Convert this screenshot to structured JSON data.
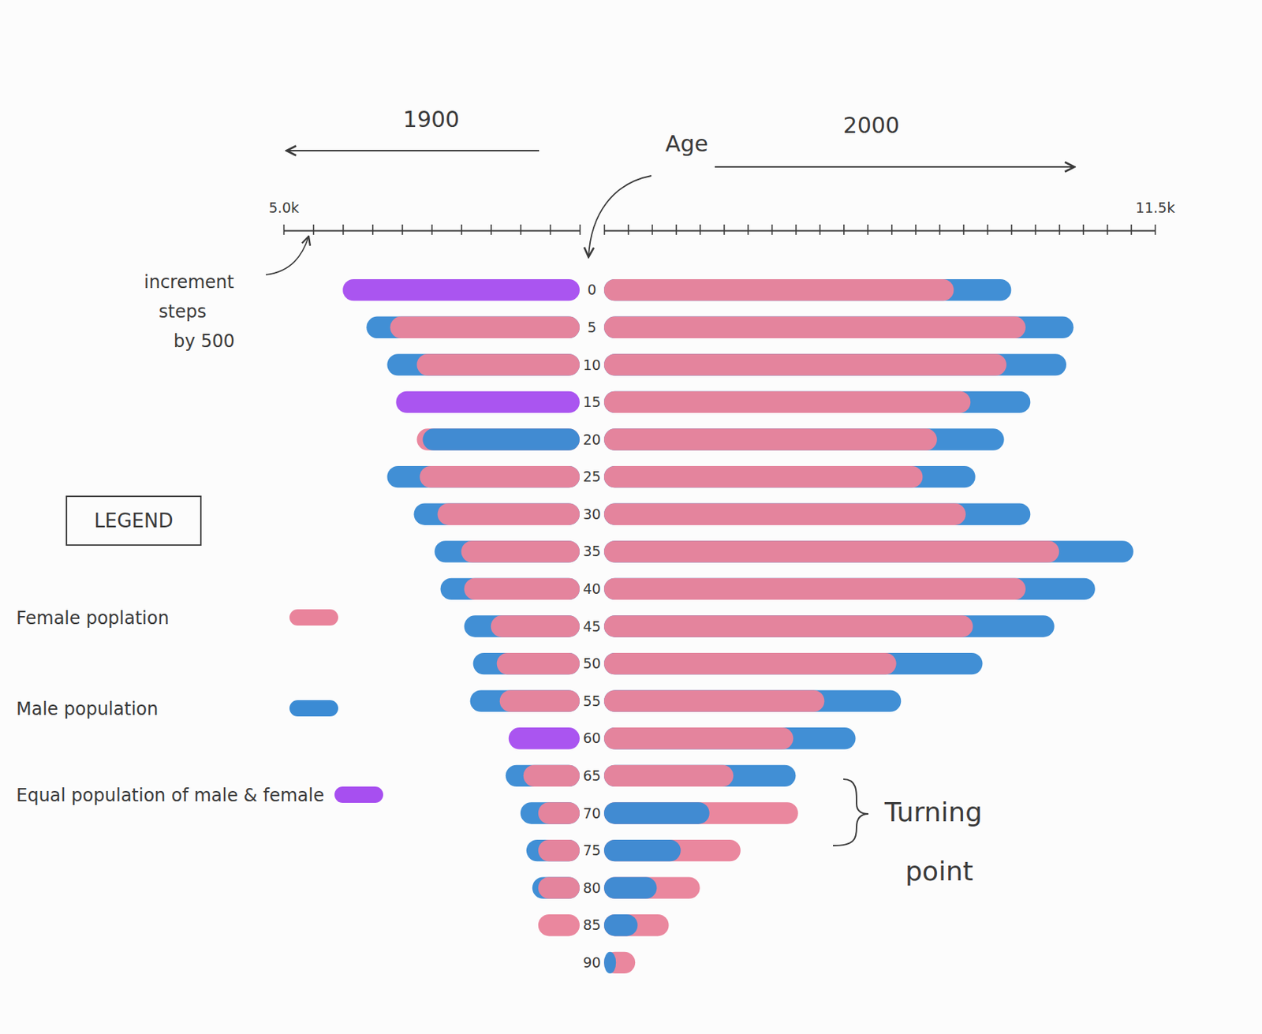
{
  "chart_data": {
    "type": "bar",
    "orientation": "horizontal",
    "y_label": "Age",
    "categories": [
      0,
      5,
      10,
      15,
      20,
      25,
      30,
      35,
      40,
      45,
      50,
      55,
      60,
      65,
      70,
      75,
      80,
      85,
      90
    ],
    "series": [
      {
        "name": "Female poplation",
        "color": "#e9839b"
      },
      {
        "name": "Male population",
        "color": "#3b8bd4"
      }
    ],
    "equal": {
      "name": "Equal population of male & female",
      "color": "#a74ff0"
    },
    "legend": "left",
    "legend_title": "LEGEND",
    "annotations": [
      {
        "lines": [
          "increment",
          "steps",
          "by 500"
        ]
      },
      {
        "lines": [
          "Turning",
          "point"
        ]
      }
    ],
    "panels": [
      {
        "title": "1900",
        "xlim": [
          0,
          5000
        ],
        "xticks": [
          {
            "value": 0,
            "label": null
          },
          {
            "value": 500,
            "label": null
          },
          {
            "value": 1000,
            "label": null
          },
          {
            "value": 1500,
            "label": null
          },
          {
            "value": 2000,
            "label": null
          },
          {
            "value": 2500,
            "label": null
          },
          {
            "value": 3000,
            "label": null
          },
          {
            "value": 3500,
            "label": null
          },
          {
            "value": 4000,
            "label": null
          },
          {
            "value": 4500,
            "label": null
          },
          {
            "value": 5000,
            "label": "5.0k"
          }
        ],
        "series": [
          {
            "values": [
              4000,
              3200,
              2750,
              3100,
              2750,
              2700,
              2400,
              2000,
              1950,
              1500,
              1400,
              1350,
              1200,
              950,
              700,
              700,
              700,
              700,
              0
            ]
          },
          {
            "values": [
              4000,
              3600,
              3250,
              3100,
              2650,
              3250,
              2800,
              2450,
              2350,
              1950,
              1800,
              1850,
              1200,
              1250,
              1000,
              900,
              800,
              0,
              0
            ]
          }
        ]
      },
      {
        "title": "2000",
        "xlim": [
          0,
          11500
        ],
        "xticks": [
          {
            "value": 0,
            "label": null
          },
          {
            "value": 500,
            "label": null
          },
          {
            "value": 1000,
            "label": null
          },
          {
            "value": 1500,
            "label": null
          },
          {
            "value": 2000,
            "label": null
          },
          {
            "value": 2500,
            "label": null
          },
          {
            "value": 3000,
            "label": null
          },
          {
            "value": 3500,
            "label": null
          },
          {
            "value": 4000,
            "label": null
          },
          {
            "value": 4500,
            "label": null
          },
          {
            "value": 5000,
            "label": null
          },
          {
            "value": 5500,
            "label": null
          },
          {
            "value": 6000,
            "label": null
          },
          {
            "value": 6500,
            "label": null
          },
          {
            "value": 7000,
            "label": null
          },
          {
            "value": 7500,
            "label": null
          },
          {
            "value": 8000,
            "label": null
          },
          {
            "value": 8500,
            "label": null
          },
          {
            "value": 9000,
            "label": null
          },
          {
            "value": 9500,
            "label": null
          },
          {
            "value": 10000,
            "label": null
          },
          {
            "value": 10500,
            "label": null
          },
          {
            "value": 11000,
            "label": null
          },
          {
            "value": 11500,
            "label": "11.5k"
          }
        ],
        "series": [
          {
            "values": [
              7300,
              8800,
              8400,
              7650,
              6950,
              6650,
              7550,
              9500,
              8800,
              7700,
              6100,
              4600,
              3950,
              2700,
              4050,
              2850,
              2000,
              1350,
              650
            ]
          },
          {
            "values": [
              8500,
              9800,
              9650,
              8900,
              8350,
              7750,
              8900,
              11050,
              10250,
              9400,
              7900,
              6200,
              5250,
              4000,
              2200,
              1600,
              1100,
              700,
              250
            ]
          }
        ]
      }
    ]
  }
}
